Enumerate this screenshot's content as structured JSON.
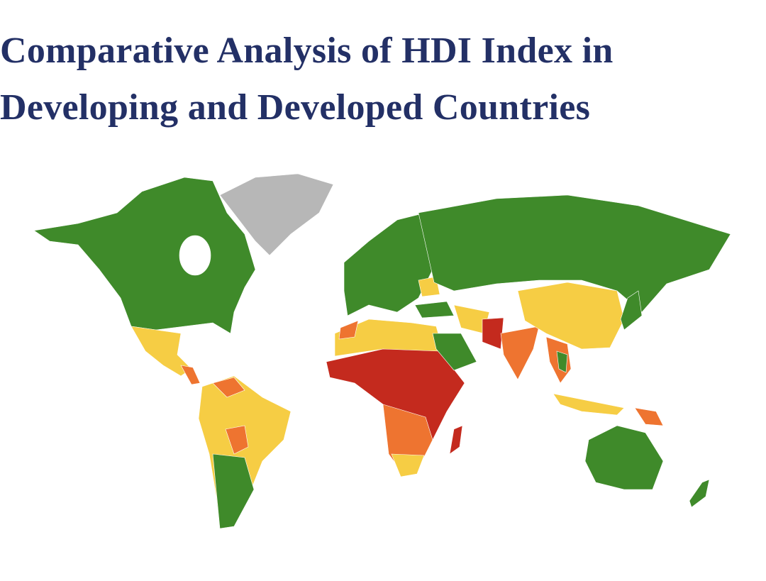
{
  "title": {
    "lines": [
      "Comparative Analysis of HDI Index in",
      "Developing and Developed Countries"
    ]
  }
}
